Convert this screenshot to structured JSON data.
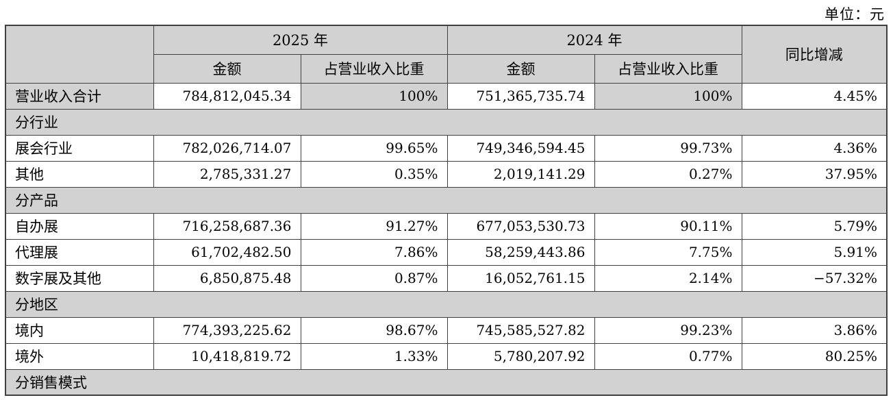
{
  "unit_label": "单位：元",
  "colors": {
    "header_bg": "#d2d2d2",
    "cell_bg": "#ffffff",
    "border": "#3f3f3f"
  },
  "table": {
    "headers": {
      "corner": "",
      "year_2025": "2025 年",
      "year_2024": "2024 年",
      "yoy": "同比增减",
      "amount_2025": "金额",
      "ratio_2025": "占营业收入比重",
      "amount_2024": "金额",
      "ratio_2024": "占营业收入比重"
    },
    "rows": [
      {
        "type": "data",
        "shade_label_and_ratio": true,
        "label": "营业收入合计",
        "amount_2025": "784,812,045.34",
        "ratio_2025": "100%",
        "amount_2024": "751,365,735.74",
        "ratio_2024": "100%",
        "yoy": "4.45%"
      },
      {
        "type": "section",
        "label": "分行业"
      },
      {
        "type": "data",
        "shade_label_and_ratio": false,
        "label": "展会行业",
        "amount_2025": "782,026,714.07",
        "ratio_2025": "99.65%",
        "amount_2024": "749,346,594.45",
        "ratio_2024": "99.73%",
        "yoy": "4.36%"
      },
      {
        "type": "data",
        "shade_label_and_ratio": false,
        "label": "其他",
        "amount_2025": "2,785,331.27",
        "ratio_2025": "0.35%",
        "amount_2024": "2,019,141.29",
        "ratio_2024": "0.27%",
        "yoy": "37.95%"
      },
      {
        "type": "section",
        "label": "分产品"
      },
      {
        "type": "data",
        "shade_label_and_ratio": false,
        "label": "自办展",
        "amount_2025": "716,258,687.36",
        "ratio_2025": "91.27%",
        "amount_2024": "677,053,530.73",
        "ratio_2024": "90.11%",
        "yoy": "5.79%"
      },
      {
        "type": "data",
        "shade_label_and_ratio": false,
        "label": "代理展",
        "amount_2025": "61,702,482.50",
        "ratio_2025": "7.86%",
        "amount_2024": "58,259,443.86",
        "ratio_2024": "7.75%",
        "yoy": "5.91%"
      },
      {
        "type": "data",
        "shade_label_and_ratio": false,
        "label": "数字展及其他",
        "amount_2025": "6,850,875.48",
        "ratio_2025": "0.87%",
        "amount_2024": "16,052,761.15",
        "ratio_2024": "2.14%",
        "yoy": "−57.32%"
      },
      {
        "type": "section",
        "label": "分地区"
      },
      {
        "type": "data",
        "shade_label_and_ratio": false,
        "label": "境内",
        "amount_2025": "774,393,225.62",
        "ratio_2025": "98.67%",
        "amount_2024": "745,585,527.82",
        "ratio_2024": "99.23%",
        "yoy": "3.86%"
      },
      {
        "type": "data",
        "shade_label_and_ratio": false,
        "label": "境外",
        "amount_2025": "10,418,819.72",
        "ratio_2025": "1.33%",
        "amount_2024": "5,780,207.92",
        "ratio_2024": "0.77%",
        "yoy": "80.25%"
      },
      {
        "type": "section",
        "label": "分销售模式"
      }
    ]
  }
}
